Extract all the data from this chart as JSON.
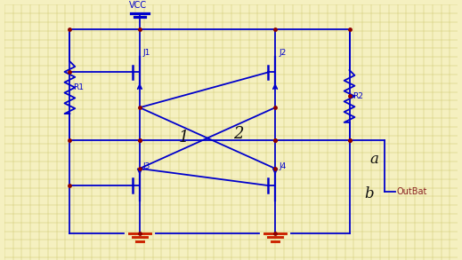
{
  "bg_color": "#f5f0c0",
  "line_color": "#0000cc",
  "dot_color": "#8b0000",
  "text_color_blue": "#0000cc",
  "text_color_red": "#8b2222",
  "grid_color": "#cfc870",
  "label_VCC": "VCC",
  "label_J1": "J1",
  "label_J2": "J2",
  "label_J3": "J3",
  "label_J4": "J4",
  "label_R1": "R1",
  "label_R2": "R2",
  "label_OutBat": "OutBat",
  "annotation_1": "1",
  "annotation_2": "2",
  "annotation_a": "a",
  "annotation_b": "b"
}
